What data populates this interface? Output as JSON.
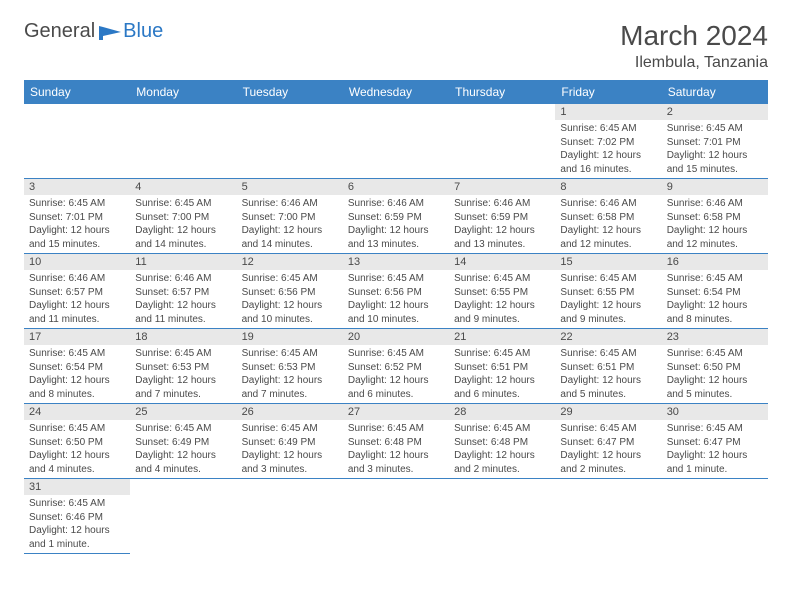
{
  "logo": {
    "general": "General",
    "blue": "Blue"
  },
  "title": "March 2024",
  "location": "Ilembula, Tanzania",
  "columns": [
    "Sunday",
    "Monday",
    "Tuesday",
    "Wednesday",
    "Thursday",
    "Friday",
    "Saturday"
  ],
  "colors": {
    "header_bg": "#3b82c4",
    "header_text": "#ffffff",
    "daynum_bg": "#e8e8e8",
    "text": "#4a4a4a",
    "border": "#3b82c4",
    "logo_blue": "#2b78c5"
  },
  "weeks": [
    [
      null,
      null,
      null,
      null,
      null,
      {
        "n": "1",
        "sunrise": "6:45 AM",
        "sunset": "7:02 PM",
        "daylight": "12 hours and 16 minutes."
      },
      {
        "n": "2",
        "sunrise": "6:45 AM",
        "sunset": "7:01 PM",
        "daylight": "12 hours and 15 minutes."
      }
    ],
    [
      {
        "n": "3",
        "sunrise": "6:45 AM",
        "sunset": "7:01 PM",
        "daylight": "12 hours and 15 minutes."
      },
      {
        "n": "4",
        "sunrise": "6:45 AM",
        "sunset": "7:00 PM",
        "daylight": "12 hours and 14 minutes."
      },
      {
        "n": "5",
        "sunrise": "6:46 AM",
        "sunset": "7:00 PM",
        "daylight": "12 hours and 14 minutes."
      },
      {
        "n": "6",
        "sunrise": "6:46 AM",
        "sunset": "6:59 PM",
        "daylight": "12 hours and 13 minutes."
      },
      {
        "n": "7",
        "sunrise": "6:46 AM",
        "sunset": "6:59 PM",
        "daylight": "12 hours and 13 minutes."
      },
      {
        "n": "8",
        "sunrise": "6:46 AM",
        "sunset": "6:58 PM",
        "daylight": "12 hours and 12 minutes."
      },
      {
        "n": "9",
        "sunrise": "6:46 AM",
        "sunset": "6:58 PM",
        "daylight": "12 hours and 12 minutes."
      }
    ],
    [
      {
        "n": "10",
        "sunrise": "6:46 AM",
        "sunset": "6:57 PM",
        "daylight": "12 hours and 11 minutes."
      },
      {
        "n": "11",
        "sunrise": "6:46 AM",
        "sunset": "6:57 PM",
        "daylight": "12 hours and 11 minutes."
      },
      {
        "n": "12",
        "sunrise": "6:45 AM",
        "sunset": "6:56 PM",
        "daylight": "12 hours and 10 minutes."
      },
      {
        "n": "13",
        "sunrise": "6:45 AM",
        "sunset": "6:56 PM",
        "daylight": "12 hours and 10 minutes."
      },
      {
        "n": "14",
        "sunrise": "6:45 AM",
        "sunset": "6:55 PM",
        "daylight": "12 hours and 9 minutes."
      },
      {
        "n": "15",
        "sunrise": "6:45 AM",
        "sunset": "6:55 PM",
        "daylight": "12 hours and 9 minutes."
      },
      {
        "n": "16",
        "sunrise": "6:45 AM",
        "sunset": "6:54 PM",
        "daylight": "12 hours and 8 minutes."
      }
    ],
    [
      {
        "n": "17",
        "sunrise": "6:45 AM",
        "sunset": "6:54 PM",
        "daylight": "12 hours and 8 minutes."
      },
      {
        "n": "18",
        "sunrise": "6:45 AM",
        "sunset": "6:53 PM",
        "daylight": "12 hours and 7 minutes."
      },
      {
        "n": "19",
        "sunrise": "6:45 AM",
        "sunset": "6:53 PM",
        "daylight": "12 hours and 7 minutes."
      },
      {
        "n": "20",
        "sunrise": "6:45 AM",
        "sunset": "6:52 PM",
        "daylight": "12 hours and 6 minutes."
      },
      {
        "n": "21",
        "sunrise": "6:45 AM",
        "sunset": "6:51 PM",
        "daylight": "12 hours and 6 minutes."
      },
      {
        "n": "22",
        "sunrise": "6:45 AM",
        "sunset": "6:51 PM",
        "daylight": "12 hours and 5 minutes."
      },
      {
        "n": "23",
        "sunrise": "6:45 AM",
        "sunset": "6:50 PM",
        "daylight": "12 hours and 5 minutes."
      }
    ],
    [
      {
        "n": "24",
        "sunrise": "6:45 AM",
        "sunset": "6:50 PM",
        "daylight": "12 hours and 4 minutes."
      },
      {
        "n": "25",
        "sunrise": "6:45 AM",
        "sunset": "6:49 PM",
        "daylight": "12 hours and 4 minutes."
      },
      {
        "n": "26",
        "sunrise": "6:45 AM",
        "sunset": "6:49 PM",
        "daylight": "12 hours and 3 minutes."
      },
      {
        "n": "27",
        "sunrise": "6:45 AM",
        "sunset": "6:48 PM",
        "daylight": "12 hours and 3 minutes."
      },
      {
        "n": "28",
        "sunrise": "6:45 AM",
        "sunset": "6:48 PM",
        "daylight": "12 hours and 2 minutes."
      },
      {
        "n": "29",
        "sunrise": "6:45 AM",
        "sunset": "6:47 PM",
        "daylight": "12 hours and 2 minutes."
      },
      {
        "n": "30",
        "sunrise": "6:45 AM",
        "sunset": "6:47 PM",
        "daylight": "12 hours and 1 minute."
      }
    ],
    [
      {
        "n": "31",
        "sunrise": "6:45 AM",
        "sunset": "6:46 PM",
        "daylight": "12 hours and 1 minute."
      },
      null,
      null,
      null,
      null,
      null,
      null
    ]
  ]
}
